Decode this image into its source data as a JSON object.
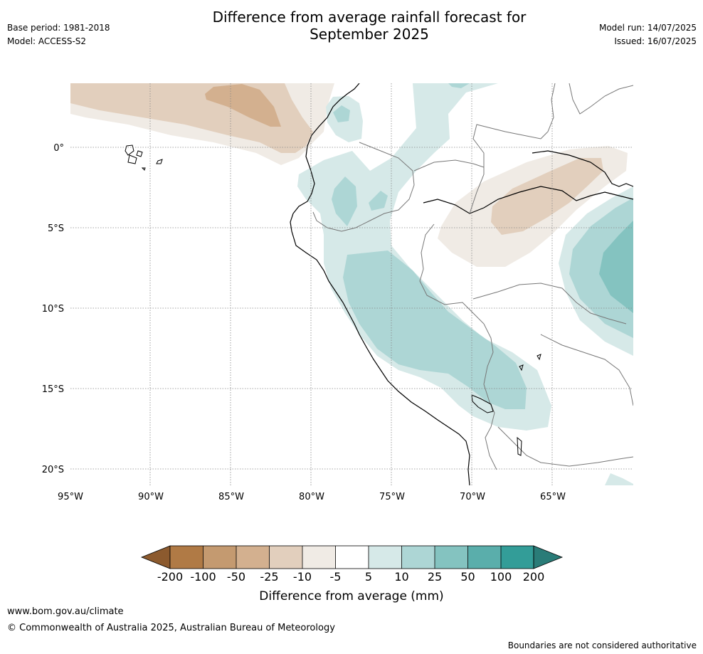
{
  "header": {
    "title_line1": "Difference from average rainfall forecast for",
    "title_line2": "September 2025",
    "base_period": "Base period: 1981-2018",
    "model": "Model: ACCESS-S2",
    "model_run": "Model run: 14/07/2025",
    "issued": "Issued: 16/07/2025"
  },
  "map": {
    "lat_labels": [
      "0°",
      "5°S",
      "10°S",
      "15°S",
      "20°S"
    ],
    "lon_labels": [
      "95°W",
      "90°W",
      "85°W",
      "80°W",
      "75°W",
      "70°W",
      "65°W"
    ],
    "colors": {
      "dry_extreme": "#8c5a2e",
      "dry_200": "#b07a45",
      "dry_100": "#c49a70",
      "dry_50": "#d3b08f",
      "dry_25": "#e2cfbd",
      "dry_10": "#f0ebe5",
      "neutral": "#ffffff",
      "wet_5": "#d6e9e8",
      "wet_10": "#add6d5",
      "wet_25": "#84c3c0",
      "wet_50": "#5aaeab",
      "wet_100": "#339d98",
      "wet_extreme": "#2a7c78",
      "coastline": "#000000",
      "border": "#777777"
    }
  },
  "colorbar": {
    "tick_labels": [
      "-200",
      "-100",
      "-50",
      "-25",
      "-10",
      "-5",
      "5",
      "10",
      "25",
      "50",
      "100",
      "200"
    ],
    "title": "Difference from average (mm)"
  },
  "footer": {
    "website": "www.bom.gov.au/climate",
    "copyright": "© Commonwealth of Australia 2025, Australian Bureau of Meteorology",
    "disclaimer": "Boundaries are not considered authoritative"
  }
}
